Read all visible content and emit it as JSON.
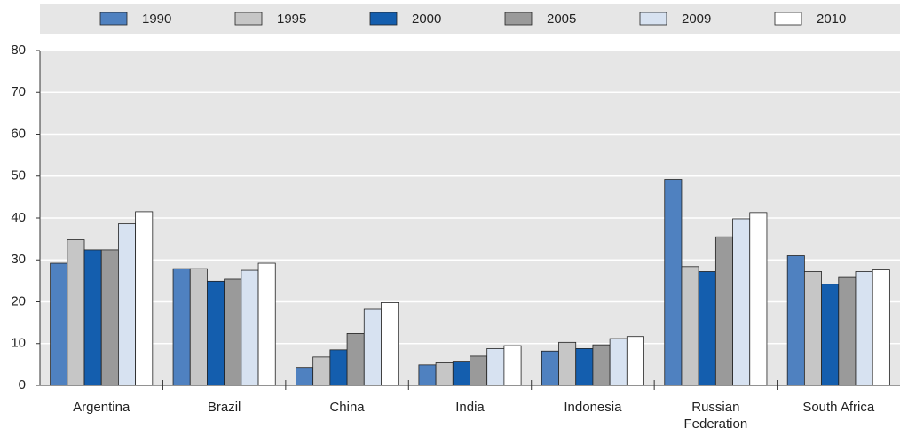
{
  "chart_data": {
    "type": "bar",
    "categories": [
      "Argentina",
      "Brazil",
      "China",
      "India",
      "Indonesia",
      "Russian Federation",
      "South Africa"
    ],
    "series": [
      {
        "name": "1990",
        "color": "#4f81c0",
        "values": [
          29.2,
          27.9,
          4.3,
          4.9,
          8.2,
          49.2,
          31.0
        ]
      },
      {
        "name": "1995",
        "color": "#c6c6c6",
        "values": [
          34.8,
          27.9,
          6.8,
          5.4,
          10.3,
          28.4,
          27.2
        ]
      },
      {
        "name": "2000",
        "color": "#145eae",
        "values": [
          32.4,
          24.9,
          8.5,
          5.8,
          8.8,
          27.2,
          24.2
        ]
      },
      {
        "name": "2005",
        "color": "#9a9a9a",
        "values": [
          32.4,
          25.4,
          12.4,
          7.0,
          9.7,
          35.5,
          25.8
        ]
      },
      {
        "name": "2009",
        "color": "#d7e2f1",
        "values": [
          38.6,
          27.5,
          18.2,
          8.8,
          11.2,
          39.8,
          27.2
        ]
      },
      {
        "name": "2010",
        "color": "#ffffff",
        "values": [
          41.5,
          29.2,
          19.8,
          9.5,
          11.7,
          41.3,
          27.6
        ]
      }
    ],
    "ylim": [
      0,
      80
    ],
    "yticks": [
      0,
      10,
      20,
      30,
      40,
      50,
      60,
      70,
      80
    ],
    "grid": true
  }
}
